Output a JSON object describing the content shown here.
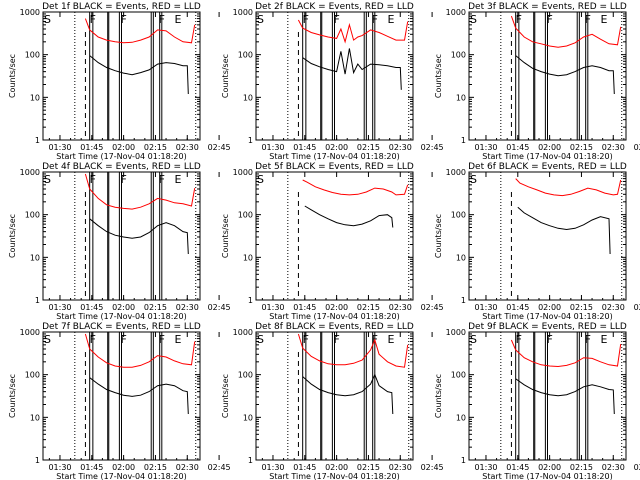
{
  "chart_data": [
    {
      "type": "line",
      "title": "Det 1f BLACK = Events, RED = LLD",
      "xlabel": "Start Time (17-Nov-04 01:18:20)",
      "ylabel": "Counts/sec",
      "yscale": "log",
      "ylim": [
        1,
        1000
      ],
      "yticks": [
        "1",
        "10",
        "100",
        "1000"
      ],
      "xticks": [
        "01:30",
        "01:45",
        "02:00",
        "02:15",
        "02:30",
        "02:45"
      ],
      "xlim_minutes": [
        22,
        96
      ],
      "segment_labels": [
        "S",
        "F",
        "F",
        "F",
        "E"
      ],
      "segment_label_x": [
        22.5,
        44,
        58.5,
        76.5,
        84
      ],
      "dotted_lines_x": [
        37,
        94
      ],
      "dashed_lines_x": [
        42
      ],
      "solid_lines_x": [
        44,
        45.5,
        52.5,
        53,
        58,
        59,
        73,
        74,
        77,
        78
      ],
      "series": [
        {
          "name": "LLD",
          "color": "#ff0000",
          "x": [
            42,
            44,
            48,
            52,
            56,
            60,
            64,
            68,
            72,
            76,
            80,
            84,
            88,
            92,
            93.5
          ],
          "y": [
            700,
            380,
            260,
            220,
            200,
            190,
            195,
            220,
            260,
            380,
            360,
            260,
            200,
            190,
            500
          ]
        },
        {
          "name": "Events",
          "color": "#000000",
          "x": [
            44,
            48,
            52,
            56,
            60,
            64,
            68,
            72,
            76,
            80,
            84,
            88,
            90,
            90.5
          ],
          "y": [
            95,
            65,
            50,
            42,
            37,
            34,
            38,
            44,
            60,
            65,
            62,
            55,
            55,
            12
          ]
        }
      ]
    },
    {
      "type": "line",
      "title": "Det 2f BLACK = Events, RED = LLD",
      "xlabel": "Start Time (17-Nov-04 01:18:20)",
      "ylabel": "Counts/sec",
      "yscale": "log",
      "ylim": [
        1,
        1000
      ],
      "yticks": [
        "1",
        "10",
        "100",
        "1000"
      ],
      "xticks": [
        "01:30",
        "01:45",
        "02:00",
        "02:15",
        "02:30",
        "02:45"
      ],
      "xlim_minutes": [
        22,
        96
      ],
      "segment_labels": [
        "S",
        "F",
        "F",
        "F",
        "E"
      ],
      "segment_label_x": [
        22.5,
        44,
        58.5,
        76.5,
        84
      ],
      "dotted_lines_x": [
        37,
        94
      ],
      "dashed_lines_x": [
        42
      ],
      "solid_lines_x": [
        44,
        45.5,
        52.5,
        53,
        58,
        59,
        73,
        74,
        77,
        78
      ],
      "series": [
        {
          "name": "LLD",
          "color": "#ff0000",
          "x": [
            42,
            44,
            48,
            52,
            56,
            60,
            62,
            64,
            66,
            68,
            70,
            72,
            76,
            80,
            84,
            88,
            92,
            93.5
          ],
          "y": [
            650,
            420,
            330,
            290,
            260,
            240,
            400,
            200,
            500,
            220,
            260,
            280,
            380,
            330,
            270,
            220,
            220,
            600
          ]
        },
        {
          "name": "Events",
          "color": "#000000",
          "x": [
            44,
            48,
            52,
            56,
            60,
            62,
            64,
            66,
            68,
            70,
            72,
            76,
            80,
            84,
            88,
            90,
            90.5
          ],
          "y": [
            85,
            62,
            52,
            45,
            40,
            120,
            35,
            140,
            38,
            60,
            45,
            60,
            58,
            55,
            50,
            50,
            15
          ]
        }
      ]
    },
    {
      "type": "line",
      "title": "Det 3f BLACK = Events, RED = LLD",
      "xlabel": "Start Time (17-Nov-04 01:18:20)",
      "ylabel": "Counts/sec",
      "yscale": "log",
      "ylim": [
        1,
        1000
      ],
      "yticks": [
        "1",
        "10",
        "100",
        "1000"
      ],
      "xticks": [
        "01:30",
        "01:45",
        "02:00",
        "02:15",
        "02:30",
        "02:45"
      ],
      "xlim_minutes": [
        22,
        96
      ],
      "segment_labels": [
        "S",
        "F",
        "F",
        "F",
        "E"
      ],
      "segment_label_x": [
        22.5,
        44,
        58.5,
        76.5,
        84
      ],
      "dotted_lines_x": [
        37,
        94
      ],
      "dashed_lines_x": [
        42
      ],
      "solid_lines_x": [
        44,
        45.5,
        52.5,
        53,
        58,
        59,
        73,
        74,
        77,
        78
      ],
      "series": [
        {
          "name": "LLD",
          "color": "#ff0000",
          "x": [
            42,
            44,
            48,
            52,
            56,
            60,
            64,
            68,
            72,
            76,
            80,
            84,
            88,
            92,
            93.5
          ],
          "y": [
            800,
            420,
            260,
            200,
            180,
            160,
            150,
            160,
            190,
            260,
            300,
            230,
            180,
            170,
            450
          ]
        },
        {
          "name": "Events",
          "color": "#000000",
          "x": [
            44,
            48,
            52,
            56,
            60,
            64,
            68,
            72,
            76,
            80,
            84,
            88,
            90,
            90.5
          ],
          "y": [
            95,
            65,
            48,
            40,
            35,
            32,
            34,
            40,
            50,
            55,
            50,
            42,
            42,
            12
          ]
        }
      ]
    },
    {
      "type": "line",
      "title": "Det 4f BLACK = Events, RED = LLD",
      "xlabel": "Start Time (17-Nov-04 01:18:20)",
      "ylabel": "Counts/sec",
      "yscale": "log",
      "ylim": [
        1,
        1000
      ],
      "yticks": [
        "1",
        "10",
        "100",
        "1000"
      ],
      "xticks": [
        "01:30",
        "01:45",
        "02:00",
        "02:15",
        "02:30",
        "02:45"
      ],
      "xlim_minutes": [
        22,
        96
      ],
      "segment_labels": [
        "S",
        "F",
        "F",
        "F",
        "E"
      ],
      "segment_label_x": [
        22.5,
        44,
        58.5,
        76.5,
        84
      ],
      "dotted_lines_x": [
        37,
        94
      ],
      "dashed_lines_x": [
        42
      ],
      "solid_lines_x": [
        44,
        45.5,
        52.5,
        53,
        58,
        59,
        73,
        74,
        77,
        78
      ],
      "series": [
        {
          "name": "LLD",
          "color": "#ff0000",
          "x": [
            42,
            44,
            48,
            52,
            56,
            60,
            64,
            68,
            72,
            76,
            80,
            84,
            88,
            92,
            93.5
          ],
          "y": [
            900,
            400,
            240,
            170,
            150,
            140,
            135,
            150,
            180,
            240,
            220,
            190,
            180,
            160,
            420
          ]
        },
        {
          "name": "Events",
          "color": "#000000",
          "x": [
            44,
            48,
            52,
            56,
            60,
            64,
            68,
            72,
            76,
            80,
            84,
            88,
            90,
            90.5
          ],
          "y": [
            80,
            55,
            40,
            33,
            30,
            28,
            30,
            38,
            55,
            65,
            55,
            40,
            38,
            12
          ]
        }
      ]
    },
    {
      "type": "line",
      "title": "Det 5f BLACK = Events, RED = LLD",
      "xlabel": "Start Time (17-Nov-04 01:18:20)",
      "ylabel": "Counts/sec",
      "yscale": "log",
      "ylim": [
        1,
        1000
      ],
      "yticks": [
        "1",
        "10",
        "100",
        "1000"
      ],
      "xticks": [
        "01:30",
        "01:45",
        "02:00",
        "02:15",
        "02:30",
        "02:45"
      ],
      "xlim_minutes": [
        22,
        96
      ],
      "segment_labels": [
        "S"
      ],
      "segment_label_x": [
        22.5
      ],
      "dotted_lines_x": [
        37,
        94
      ],
      "dashed_lines_x": [
        42
      ],
      "solid_lines_x": [],
      "series": [
        {
          "name": "LLD",
          "color": "#ff0000",
          "x": [
            44,
            46,
            50,
            54,
            58,
            62,
            66,
            70,
            74,
            78,
            82,
            86,
            88,
            92,
            93.5
          ],
          "y": [
            650,
            580,
            450,
            380,
            330,
            300,
            290,
            300,
            340,
            420,
            400,
            340,
            290,
            300,
            500
          ]
        },
        {
          "name": "Events",
          "color": "#000000",
          "x": [
            45,
            48,
            52,
            56,
            60,
            64,
            68,
            72,
            76,
            80,
            84,
            86,
            86.5
          ],
          "y": [
            160,
            130,
            100,
            80,
            65,
            58,
            55,
            60,
            72,
            95,
            100,
            85,
            50
          ]
        }
      ]
    },
    {
      "type": "line",
      "title": "Det 6f BLACK = Events, RED = LLD",
      "xlabel": "Start Time (17-Nov-04 01:18:20)",
      "ylabel": "Counts/sec",
      "yscale": "log",
      "ylim": [
        1,
        1000
      ],
      "yticks": [
        "1",
        "10",
        "100",
        "1000"
      ],
      "xticks": [
        "01:30",
        "01:45",
        "02:00",
        "02:15",
        "02:30",
        "02:45"
      ],
      "xlim_minutes": [
        22,
        96
      ],
      "segment_labels": [
        "S"
      ],
      "segment_label_x": [
        22.5
      ],
      "dotted_lines_x": [
        37,
        94
      ],
      "dashed_lines_x": [
        42
      ],
      "solid_lines_x": [],
      "series": [
        {
          "name": "LLD",
          "color": "#ff0000",
          "x": [
            44,
            46,
            50,
            54,
            58,
            62,
            66,
            70,
            74,
            78,
            82,
            86,
            90,
            92,
            93.5
          ],
          "y": [
            700,
            550,
            450,
            380,
            320,
            290,
            280,
            300,
            350,
            420,
            380,
            320,
            290,
            300,
            650
          ]
        },
        {
          "name": "Events",
          "color": "#000000",
          "x": [
            45,
            48,
            52,
            56,
            60,
            64,
            68,
            72,
            76,
            80,
            84,
            88,
            88.5
          ],
          "y": [
            150,
            110,
            85,
            65,
            55,
            48,
            45,
            48,
            58,
            75,
            90,
            80,
            12
          ]
        }
      ]
    },
    {
      "type": "line",
      "title": "Det 7f BLACK = Events, RED = LLD",
      "xlabel": "Start Time (17-Nov-04 01:18:20)",
      "ylabel": "Counts/sec",
      "yscale": "log",
      "ylim": [
        1,
        1000
      ],
      "yticks": [
        "1",
        "10",
        "100",
        "1000"
      ],
      "xticks": [
        "01:30",
        "01:45",
        "02:00",
        "02:15",
        "02:30",
        "02:45"
      ],
      "xlim_minutes": [
        22,
        96
      ],
      "segment_labels": [
        "S",
        "F",
        "F",
        "F",
        "E"
      ],
      "segment_label_x": [
        22.5,
        44,
        58.5,
        76.5,
        84
      ],
      "dotted_lines_x": [
        37,
        94
      ],
      "dashed_lines_x": [
        42
      ],
      "solid_lines_x": [
        44,
        45.5,
        52.5,
        53,
        58,
        59,
        73,
        74,
        77,
        78
      ],
      "series": [
        {
          "name": "LLD",
          "color": "#ff0000",
          "x": [
            42,
            44,
            48,
            52,
            56,
            60,
            64,
            68,
            72,
            76,
            80,
            84,
            88,
            92,
            93.5
          ],
          "y": [
            900,
            400,
            260,
            190,
            160,
            150,
            150,
            165,
            200,
            280,
            260,
            210,
            180,
            170,
            600
          ]
        },
        {
          "name": "Events",
          "color": "#000000",
          "x": [
            44,
            48,
            52,
            56,
            60,
            64,
            68,
            72,
            76,
            80,
            84,
            88,
            90,
            90.5
          ],
          "y": [
            85,
            60,
            45,
            38,
            33,
            31,
            33,
            40,
            55,
            60,
            55,
            42,
            40,
            12
          ]
        }
      ]
    },
    {
      "type": "line",
      "title": "Det 8f BLACK = Events, RED = LLD",
      "xlabel": "Start Time (17-Nov-04 01:18:20)",
      "ylabel": "Counts/sec",
      "yscale": "log",
      "ylim": [
        1,
        1000
      ],
      "yticks": [
        "1",
        "10",
        "100",
        "1000"
      ],
      "xticks": [
        "01:30",
        "01:45",
        "02:00",
        "02:15",
        "02:30",
        "02:45"
      ],
      "xlim_minutes": [
        22,
        96
      ],
      "segment_labels": [
        "S",
        "F",
        "F",
        "F",
        "E"
      ],
      "segment_label_x": [
        22.5,
        44,
        58.5,
        76.5,
        84
      ],
      "dotted_lines_x": [
        37,
        94
      ],
      "dashed_lines_x": [
        42
      ],
      "solid_lines_x": [
        44,
        45.5,
        52.5,
        53,
        58,
        59,
        73,
        74,
        77,
        78
      ],
      "series": [
        {
          "name": "LLD",
          "color": "#ff0000",
          "x": [
            42,
            44,
            48,
            52,
            56,
            60,
            64,
            68,
            72,
            76,
            78,
            80,
            84,
            88,
            92,
            93.5
          ],
          "y": [
            900,
            420,
            270,
            210,
            180,
            170,
            170,
            185,
            220,
            380,
            650,
            300,
            200,
            160,
            150,
            500
          ]
        },
        {
          "name": "Events",
          "color": "#000000",
          "x": [
            44,
            48,
            52,
            56,
            60,
            64,
            68,
            72,
            76,
            78,
            80,
            84,
            86,
            86.5
          ],
          "y": [
            90,
            60,
            45,
            38,
            34,
            32,
            34,
            40,
            60,
            100,
            55,
            40,
            38,
            12
          ]
        }
      ]
    },
    {
      "type": "line",
      "title": "Det 9f BLACK = Events, RED = LLD",
      "xlabel": "Start Time (17-Nov-04 01:18:20)",
      "ylabel": "Counts/sec",
      "yscale": "log",
      "ylim": [
        1,
        1000
      ],
      "yticks": [
        "1",
        "10",
        "100",
        "1000"
      ],
      "xticks": [
        "01:30",
        "01:45",
        "02:00",
        "02:15",
        "02:30",
        "02:45"
      ],
      "xlim_minutes": [
        22,
        96
      ],
      "segment_labels": [
        "S",
        "F",
        "F",
        "F",
        "E"
      ],
      "segment_label_x": [
        22.5,
        44,
        58.5,
        76.5,
        84
      ],
      "dotted_lines_x": [
        37,
        94
      ],
      "dashed_lines_x": [
        42
      ],
      "solid_lines_x": [
        44,
        45.5,
        52.5,
        53,
        58,
        59,
        73,
        74,
        77,
        78
      ],
      "series": [
        {
          "name": "LLD",
          "color": "#ff0000",
          "x": [
            42,
            44,
            48,
            52,
            56,
            60,
            64,
            68,
            72,
            76,
            80,
            84,
            88,
            92,
            93.5
          ],
          "y": [
            650,
            380,
            250,
            200,
            170,
            160,
            155,
            165,
            190,
            250,
            240,
            200,
            170,
            160,
            520
          ]
        },
        {
          "name": "Events",
          "color": "#000000",
          "x": [
            44,
            48,
            52,
            56,
            60,
            64,
            68,
            72,
            76,
            80,
            84,
            88,
            90,
            90.5
          ],
          "y": [
            80,
            58,
            45,
            38,
            34,
            32,
            34,
            40,
            52,
            58,
            52,
            45,
            44,
            12
          ]
        }
      ]
    }
  ]
}
